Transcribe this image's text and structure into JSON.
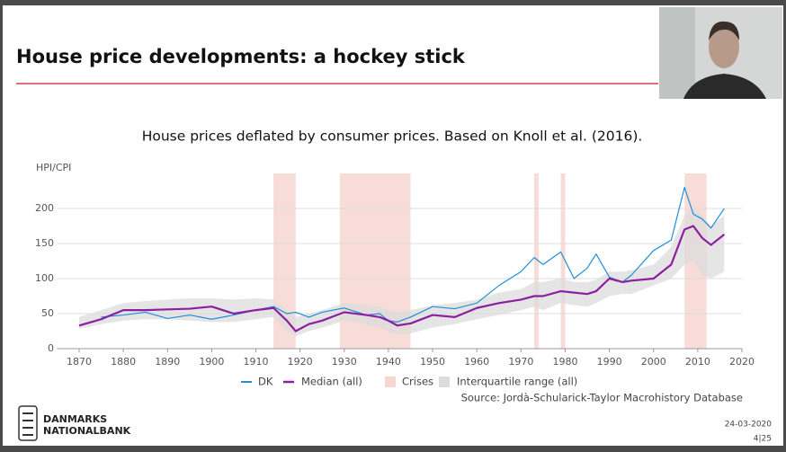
{
  "slide": {
    "title": "House price developments: a hockey stick"
  },
  "footer": {
    "logo_line1": "DANMARKS",
    "logo_line2": "NATIONALBANK",
    "date": "24-03-2020",
    "page": "4|25"
  },
  "chart_data": {
    "type": "line",
    "title": "House prices deflated by consumer prices. Based on Knoll et al. (2016).",
    "ylabel": "HPI/CPI",
    "source": "Source: Jordà-Schularick-Taylor Macrohistory Database",
    "x": [
      1870,
      1875,
      1880,
      1885,
      1890,
      1895,
      1900,
      1905,
      1910,
      1914,
      1917,
      1919,
      1922,
      1925,
      1930,
      1935,
      1938,
      1940,
      1942,
      1945,
      1950,
      1955,
      1960,
      1965,
      1970,
      1973,
      1975,
      1979,
      1982,
      1985,
      1987,
      1990,
      1993,
      1995,
      2000,
      2004,
      2007,
      2009,
      2011,
      2013,
      2016
    ],
    "series": [
      {
        "name": "DK",
        "color": "#1f8fd6",
        "values": [
          null,
          45,
          48,
          52,
          43,
          48,
          42,
          48,
          55,
          60,
          50,
          52,
          45,
          52,
          58,
          48,
          50,
          40,
          38,
          45,
          60,
          57,
          65,
          90,
          110,
          130,
          120,
          138,
          100,
          115,
          135,
          102,
          95,
          105,
          140,
          155,
          230,
          192,
          185,
          172,
          200
        ]
      },
      {
        "name": "Median (all)",
        "color": "#8b1fa0",
        "values": [
          33,
          42,
          55,
          55,
          56,
          57,
          60,
          50,
          55,
          58,
          40,
          25,
          35,
          40,
          52,
          48,
          45,
          40,
          33,
          36,
          48,
          45,
          58,
          65,
          70,
          75,
          75,
          82,
          80,
          78,
          82,
          100,
          95,
          97,
          100,
          120,
          170,
          175,
          158,
          148,
          163
        ]
      }
    ],
    "band": {
      "name": "Interquartile range (all)",
      "color": "#dcdcdc",
      "low": [
        28,
        35,
        40,
        42,
        42,
        40,
        38,
        38,
        42,
        45,
        25,
        18,
        25,
        30,
        40,
        35,
        30,
        25,
        20,
        22,
        30,
        35,
        42,
        48,
        55,
        60,
        55,
        65,
        62,
        60,
        65,
        75,
        78,
        78,
        90,
        100,
        120,
        125,
        105,
        100,
        110
      ],
      "high": [
        45,
        55,
        65,
        68,
        70,
        72,
        72,
        70,
        72,
        70,
        55,
        45,
        50,
        55,
        65,
        62,
        60,
        55,
        52,
        55,
        62,
        65,
        70,
        80,
        85,
        95,
        95,
        100,
        95,
        95,
        98,
        110,
        110,
        112,
        120,
        145,
        190,
        200,
        190,
        175,
        190
      ]
    },
    "crises": {
      "name": "Crises",
      "color": "#f6d6d0",
      "spans": [
        [
          1914,
          1919
        ],
        [
          1929,
          1945
        ],
        [
          1973,
          1974
        ],
        [
          1979,
          1980
        ],
        [
          2007,
          2012
        ]
      ]
    },
    "xlim": [
      1865,
      2020
    ],
    "ylim": [
      0,
      250
    ],
    "xticks": [
      1870,
      1880,
      1890,
      1900,
      1910,
      1920,
      1930,
      1940,
      1950,
      1960,
      1970,
      1980,
      1990,
      2000,
      2010,
      2020
    ],
    "yticks": [
      0,
      50,
      100,
      150,
      200
    ],
    "grid": true
  }
}
